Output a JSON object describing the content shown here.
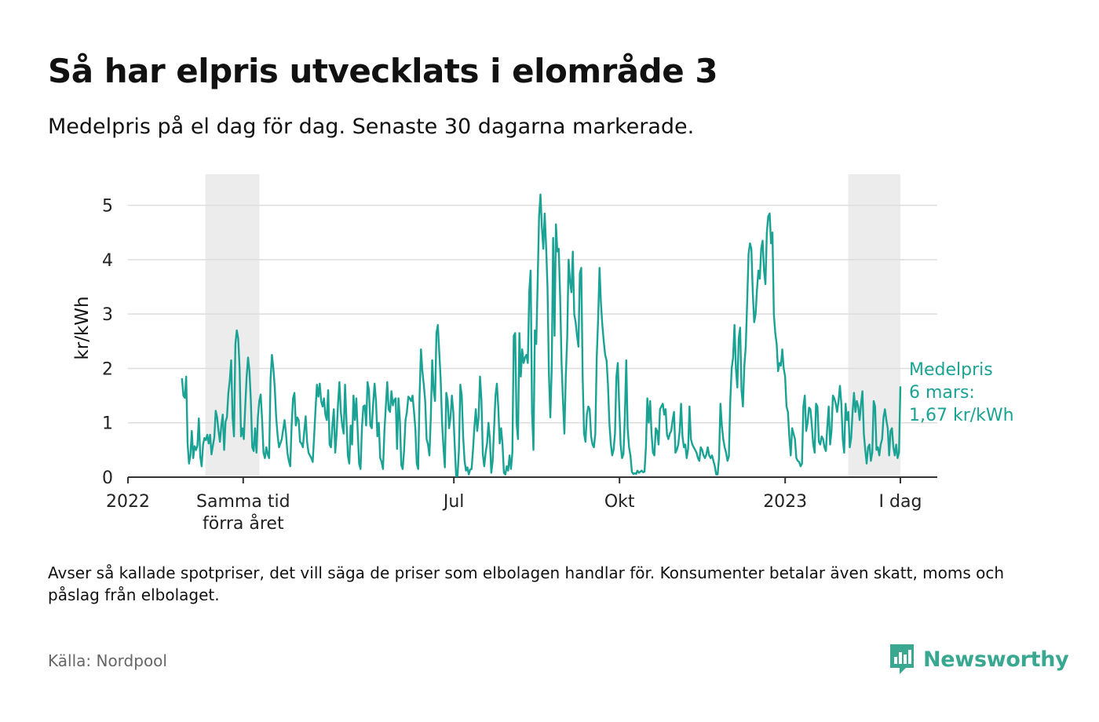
{
  "header": {
    "title": "Så har elpris utvecklats i elområde 3",
    "subtitle": "Medelpris på el dag för dag.  Senaste 30 dagarna markerade."
  },
  "footer": {
    "note": "Avser så kallade spotpriser, det vill säga de priser som elbolagen handlar för. Konsumenter betalar även skatt, moms och påslag från elbolaget.",
    "source": "Källa: Nordpool",
    "brand": "Newsworthy"
  },
  "colors": {
    "line": "#1aa394",
    "highlight": "#ececec",
    "grid": "#dddddd",
    "axis": "#333333",
    "brand": "#3aa891"
  },
  "chart_data": {
    "type": "line",
    "ylabel": "kr/kWh",
    "ylim": [
      0,
      5.5
    ],
    "yticks": [
      0,
      1,
      2,
      3,
      4,
      5
    ],
    "xlim": [
      "2022-01-01",
      "2023-03-06"
    ],
    "xticks": [
      {
        "date": "2022-01-01",
        "label": "2022"
      },
      {
        "date": "2022-03-06",
        "label": "Samma tid",
        "label2": "förra året"
      },
      {
        "date": "2022-07-01",
        "label": "Jul"
      },
      {
        "date": "2022-10-01",
        "label": "Okt"
      },
      {
        "date": "2023-01-01",
        "label": "2023"
      },
      {
        "date": "2023-03-06",
        "label": "I dag"
      }
    ],
    "highlight_ranges": [
      [
        "2022-02-13",
        "2022-03-15"
      ],
      [
        "2023-02-05",
        "2023-03-06"
      ]
    ],
    "grid": true,
    "annotation": {
      "lines": [
        "Medelpris",
        "6 mars:",
        "1,67 kr/kWh"
      ]
    },
    "series": [
      {
        "start_date": "2022-01-31",
        "values": [
          1.82,
          1.5,
          1.46,
          1.85,
          0.62,
          0.25,
          0.4,
          0.85,
          0.35,
          0.57,
          0.5,
          0.58,
          1.08,
          0.38,
          0.2,
          0.6,
          0.72,
          0.68,
          0.78,
          0.62,
          0.78,
          0.42,
          0.58,
          0.73,
          1.22,
          1.1,
          0.85,
          0.65,
          0.95,
          1.15,
          0.5,
          1.02,
          1.1,
          1.55,
          1.78,
          2.15,
          1.1,
          0.75,
          2.45,
          2.7,
          2.55,
          2.0,
          0.75,
          0.9,
          0.7,
          1.3,
          1.85,
          2.2,
          1.95,
          1.4,
          0.55,
          0.48,
          0.9,
          0.45,
          1.1,
          1.4,
          1.52,
          1.05,
          0.45,
          0.35,
          0.55,
          0.42,
          0.35,
          1.8,
          2.25,
          2.0,
          1.65,
          1.1,
          0.78,
          0.55,
          0.62,
          0.7,
          0.88,
          1.05,
          0.8,
          0.45,
          0.3,
          0.2,
          0.95,
          1.45,
          1.55,
          0.95,
          1.1,
          1.05,
          0.65,
          0.62,
          0.55,
          0.85,
          1.12,
          0.65,
          0.45,
          0.4,
          0.35,
          0.28,
          0.75,
          1.25,
          1.7,
          1.48,
          1.72,
          1.4,
          1.3,
          1.45,
          1.15,
          1.05,
          1.6,
          0.6,
          0.55,
          0.95,
          1.25,
          0.45,
          0.8,
          1.35,
          1.75,
          1.2,
          0.95,
          0.8,
          1.7,
          1.05,
          0.4,
          0.25,
          0.95,
          0.6,
          1.5,
          1.05,
          1.45,
          0.85,
          0.25,
          0.15,
          0.9,
          1.3,
          1.32,
          0.95,
          1.75,
          1.6,
          0.95,
          0.9,
          1.35,
          1.72,
          1.4,
          0.75,
          1.0,
          0.35,
          0.28,
          0.15,
          0.85,
          1.3,
          1.75,
          1.25,
          1.2,
          1.58,
          1.32,
          1.42,
          1.45,
          0.52,
          1.45,
          1.05,
          0.22,
          0.15,
          0.5,
          1.05,
          1.2,
          1.48,
          1.45,
          1.4,
          1.5,
          1.22,
          0.9,
          0.25,
          0.15,
          1.5,
          2.35,
          1.95,
          1.7,
          1.4,
          0.7,
          0.6,
          0.4,
          1.1,
          2.15,
          1.6,
          1.4,
          2.65,
          2.8,
          2.3,
          1.8,
          1.0,
          0.55,
          0.18,
          1.55,
          1.4,
          0.9,
          1.1,
          1.5,
          1.2,
          0.58,
          0.02,
          0.02,
          0.5,
          1.7,
          1.5,
          0.75,
          0.3,
          0.12,
          0.18,
          0.05,
          0.14,
          0.15,
          0.5,
          0.92,
          1.25,
          0.85,
          1.1,
          1.85,
          1.42,
          0.42,
          0.2,
          0.45,
          0.62,
          1.0,
          0.7,
          0.08,
          0.3,
          0.9,
          1.5,
          1.72,
          1.28,
          0.62,
          0.9,
          0.6,
          0.08,
          0.05,
          0.2,
          0.12,
          0.4,
          0.15,
          0.45,
          2.6,
          2.65,
          1.0,
          0.7,
          2.65,
          1.85,
          2.35,
          2.1,
          2.2,
          2.25,
          2.1,
          3.4,
          3.8,
          1.2,
          0.5,
          2.7,
          2.45,
          3.6,
          4.8,
          5.2,
          4.6,
          4.2,
          4.85,
          4.25,
          3.5,
          1.9,
          1.1,
          2.0,
          4.4,
          2.6,
          4.65,
          4.15,
          4.2,
          3.3,
          2.1,
          1.4,
          0.8,
          1.85,
          2.55,
          4.0,
          3.6,
          3.4,
          4.15,
          3.0,
          2.85,
          2.6,
          2.4,
          3.75,
          3.85,
          1.85,
          0.8,
          0.65,
          1.15,
          1.3,
          1.25,
          0.75,
          0.6,
          0.55,
          0.8,
          2.2,
          2.9,
          3.85,
          3.2,
          2.8,
          2.5,
          2.25,
          2.15,
          1.7,
          1.0,
          0.62,
          0.4,
          0.5,
          0.8,
          1.85,
          2.1,
          1.3,
          0.6,
          0.35,
          0.42,
          1.1,
          2.15,
          0.9,
          0.55,
          0.4,
          0.1,
          0.06,
          0.07,
          0.06,
          0.12,
          0.08,
          0.1,
          0.12,
          0.09,
          0.1,
          0.55,
          1.45,
          1.0,
          1.4,
          0.8,
          0.45,
          0.4,
          0.9,
          0.85,
          0.6,
          1.25,
          1.3,
          1.35,
          1.15,
          1.25,
          0.78,
          0.7,
          0.8,
          0.85,
          1.05,
          1.2,
          0.45,
          0.5,
          0.6,
          0.85,
          1.35,
          0.75,
          0.55,
          0.6,
          0.35,
          0.52,
          1.3,
          0.7,
          0.6,
          0.55,
          0.5,
          0.45,
          0.35,
          0.3,
          0.55,
          0.5,
          0.4,
          0.35,
          0.42,
          0.55,
          0.4,
          0.35,
          0.4,
          0.3,
          0.2,
          0.05,
          0.05,
          0.35,
          1.35,
          0.95,
          0.7,
          0.55,
          0.45,
          0.3,
          0.38,
          1.4,
          2.0,
          2.2,
          2.8,
          2.0,
          1.65,
          2.55,
          2.75,
          1.6,
          1.3,
          2.05,
          2.4,
          3.2,
          4.1,
          4.3,
          4.2,
          3.4,
          2.85,
          3.0,
          3.45,
          3.8,
          3.65,
          4.2,
          4.35,
          3.8,
          3.55,
          4.5,
          4.8,
          4.85,
          4.3,
          4.5,
          3.0,
          2.65,
          2.45,
          1.95,
          2.1,
          2.05,
          2.35,
          2.0,
          1.85,
          1.3,
          1.2,
          0.75,
          0.4,
          0.9,
          0.8,
          0.7,
          0.35,
          0.3,
          0.28,
          0.2,
          0.25,
          1.3,
          1.5,
          0.85,
          1.0,
          1.28,
          1.25,
          0.95,
          0.6,
          0.45,
          1.35,
          1.3,
          0.65,
          0.6,
          0.75,
          0.7,
          0.55,
          0.48,
          0.92,
          1.3,
          0.6,
          0.85,
          1.5,
          1.45,
          1.35,
          1.2,
          1.4,
          1.68,
          1.35,
          0.7,
          0.45,
          1.35,
          1.05,
          1.2,
          0.55,
          0.72,
          1.2,
          1.55,
          1.2,
          1.4,
          1.3,
          1.05,
          1.35,
          1.58,
          0.8,
          0.5,
          0.25,
          0.55,
          0.6,
          0.3,
          0.45,
          1.4,
          1.3,
          0.5,
          0.55,
          0.4,
          0.6,
          0.7,
          1.1,
          1.25,
          1.05,
          0.9,
          0.4,
          0.85,
          0.9,
          0.55,
          0.4,
          0.6,
          0.35,
          0.45,
          1.67
        ]
      }
    ]
  }
}
